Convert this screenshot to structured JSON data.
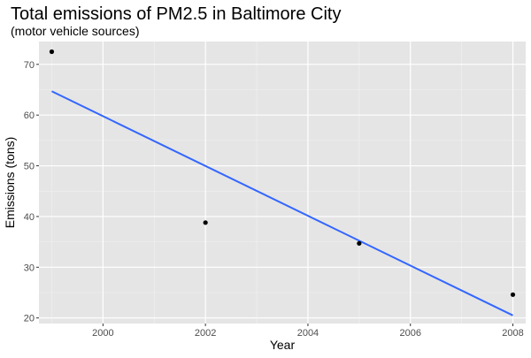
{
  "chart_data": {
    "type": "scatter",
    "title": "Total emissions of PM2.5 in Baltimore City",
    "subtitle": "(motor vehicle sources)",
    "xlabel": "Year",
    "ylabel": "Emissions (tons)",
    "xlim": [
      1998.75,
      2008.25
    ],
    "ylim": [
      18.9,
      74.5
    ],
    "x_ticks": [
      2000,
      2002,
      2004,
      2006,
      2008
    ],
    "y_ticks": [
      20,
      30,
      40,
      50,
      60,
      70
    ],
    "grid": true,
    "points": [
      {
        "x": 1999,
        "y": 72.5
      },
      {
        "x": 2002,
        "y": 38.8
      },
      {
        "x": 2005,
        "y": 34.7
      },
      {
        "x": 2008,
        "y": 24.6
      }
    ],
    "trend_line": {
      "x": [
        1999,
        2008
      ],
      "y": [
        64.7,
        20.5
      ]
    },
    "colors": {
      "panel": "#e5e5e5",
      "grid_major": "#ffffff",
      "grid_minor": "#f2f2f2",
      "points": "#000000",
      "trend_line": "#3366ff",
      "tick_label": "#4d4d4d",
      "tick_mark": "#333333"
    }
  }
}
